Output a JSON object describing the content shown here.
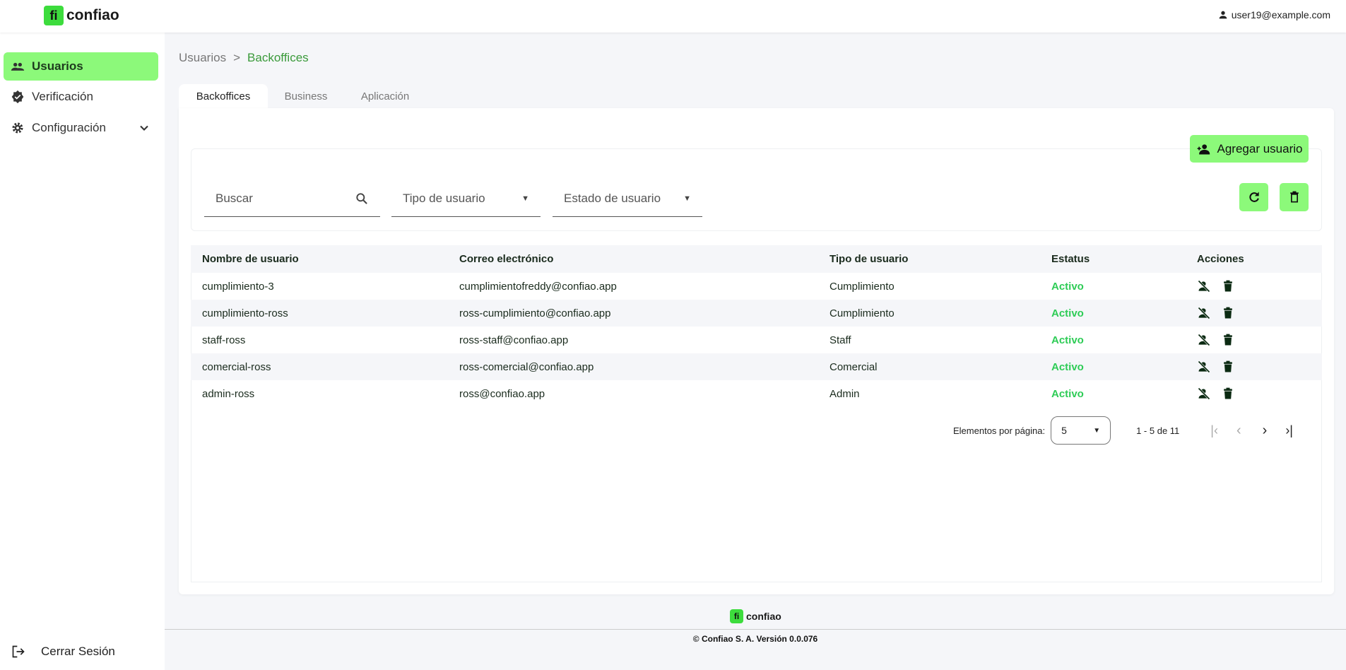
{
  "header": {
    "logo_text": "confiao",
    "user_email": "user19@example.com"
  },
  "sidebar": {
    "items": [
      {
        "label": "Usuarios",
        "icon": "people-icon",
        "active": true
      },
      {
        "label": "Verificación",
        "icon": "verified-icon"
      },
      {
        "label": "Configuración",
        "icon": "gear-icon"
      }
    ],
    "logout": "Cerrar Sesión"
  },
  "breadcrumb": {
    "parent": "Usuarios",
    "separator": ">",
    "current": "Backoffices"
  },
  "tabs": [
    {
      "label": "Backoffices",
      "active": true
    },
    {
      "label": "Business"
    },
    {
      "label": "Aplicación"
    }
  ],
  "toolbar": {
    "add_user": "Agregar usuario",
    "search_placeholder": "Buscar",
    "user_type": "Tipo de usuario",
    "user_state": "Estado de usuario"
  },
  "table": {
    "headers": [
      "Nombre de usuario",
      "Correo electrónico",
      "Tipo de usuario",
      "Estatus",
      "Acciones"
    ],
    "rows": [
      [
        "cumplimiento-3",
        "cumplimientofreddy@confiao.app",
        "Cumplimiento",
        "Activo"
      ],
      [
        "cumplimiento-ross",
        "ross-cumplimiento@confiao.app",
        "Cumplimiento",
        "Activo"
      ],
      [
        "staff-ross",
        "ross-staff@confiao.app",
        "Staff",
        "Activo"
      ],
      [
        "comercial-ross",
        "ross-comercial@confiao.app",
        "Comercial",
        "Activo"
      ],
      [
        "admin-ross",
        "ross@confiao.app",
        "Admin",
        "Activo"
      ]
    ]
  },
  "paginator": {
    "label": "Elementos por página:",
    "page_size": "5",
    "range": "1 - 5 de 11"
  },
  "footer": {
    "copyright": "© Confiao S. A. Versión 0.0.076"
  },
  "colors": {
    "accent": "#8cf97a",
    "status_active": "#2ecc56",
    "brand": "#3ddc3d"
  }
}
